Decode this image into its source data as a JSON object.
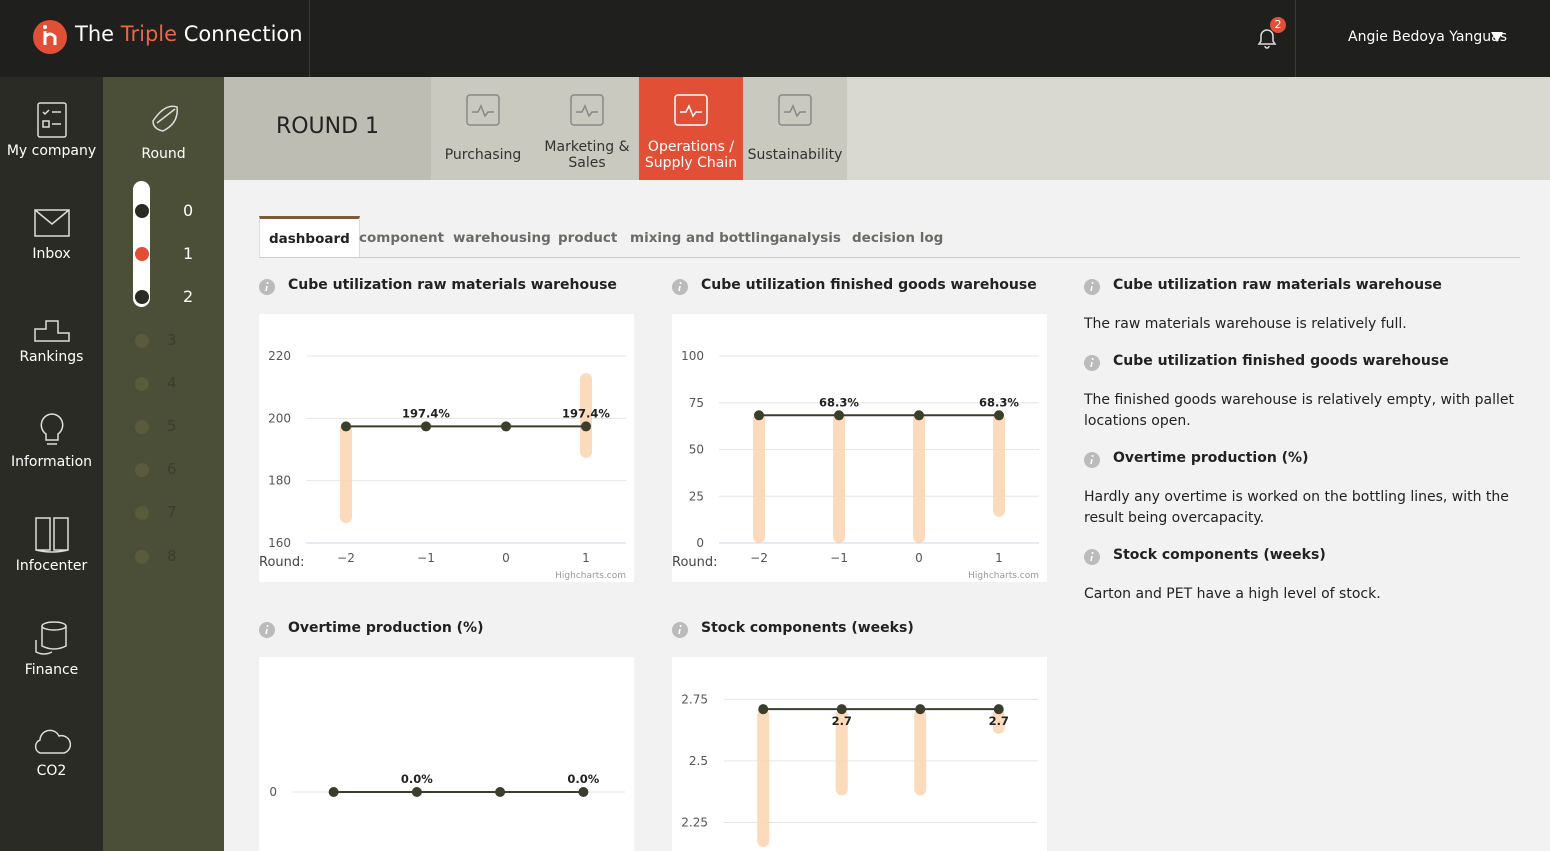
{
  "header": {
    "brand": [
      "The",
      "Triple",
      "Connection"
    ],
    "notifications": 2,
    "user": "Angie Bedoya Yanguas"
  },
  "sidebar": [
    "My company",
    "Inbox",
    "Rankings",
    "Information",
    "Infocenter",
    "Finance",
    "CO2"
  ],
  "round_panel": {
    "label": "Round",
    "rounds": [
      0,
      1,
      2,
      3,
      4,
      5,
      6,
      7,
      8
    ],
    "available": 3,
    "current": 1
  },
  "round_title": "ROUND 1",
  "tabs": {
    "items": [
      "Purchasing",
      "Marketing & Sales",
      "Operations / Supply Chain",
      "Sustainability"
    ],
    "active": 2
  },
  "subtabs": {
    "items": [
      "dashboard",
      "component",
      "warehousing",
      "product",
      "mixing and bottling",
      "analysis",
      "decision log"
    ],
    "active": 0
  },
  "charts": [
    {
      "type": "line",
      "title": "Cube utilization raw materials warehouse",
      "x_label": "Round:",
      "categories": [
        "−2",
        "−1",
        "0",
        "1"
      ],
      "values": [
        197.4,
        197.4,
        197.4,
        197.4
      ],
      "value_labels": [
        null,
        "197.4%",
        null,
        "197.4%"
      ],
      "label_position": "above",
      "color": "#3b3e2d",
      "ranges": [
        [
          166.4,
          198.8
        ],
        [
          196.5,
          198.8
        ],
        [
          196.5,
          198.8
        ],
        [
          187.3,
          214.5
        ]
      ],
      "range_color": "#fbd3b0",
      "ylim": [
        160,
        220
      ],
      "yticks": [
        160,
        180,
        200,
        220
      ],
      "grid": true,
      "credit": "Highcharts.com"
    },
    {
      "type": "line",
      "title": "Cube utilization finished goods warehouse",
      "x_label": "Round:",
      "categories": [
        "−2",
        "−1",
        "0",
        "1"
      ],
      "values": [
        68.3,
        68.3,
        68.3,
        68.3
      ],
      "value_labels": [
        null,
        "68.3%",
        null,
        "68.3%"
      ],
      "label_position": "above",
      "color": "#3b3e2d",
      "ranges": [
        [
          0,
          69.5
        ],
        [
          0,
          69.5
        ],
        [
          0,
          69.5
        ],
        [
          14,
          69.5
        ]
      ],
      "range_color": "#fbd3b0",
      "ylim": [
        0,
        100
      ],
      "yticks": [
        0,
        25,
        50,
        75,
        100
      ],
      "grid": true,
      "credit": "Highcharts.com"
    },
    {
      "type": "line",
      "title": "Overtime production (%)",
      "categories": [
        null,
        null,
        null,
        null
      ],
      "values": [
        0,
        0,
        0,
        0
      ],
      "value_labels": [
        null,
        "0.0%",
        null,
        "0.0%"
      ],
      "label_position": "above",
      "color": "#3b3e2d",
      "ylim": [
        -0.5,
        0.5
      ],
      "yticks": [
        0
      ],
      "grid": true
    },
    {
      "type": "line",
      "title": "Stock components (weeks)",
      "categories": [
        null,
        null,
        null,
        null
      ],
      "values": [
        2.71,
        2.71,
        2.71,
        2.71
      ],
      "value_labels": [
        null,
        "2.7",
        null,
        "2.7"
      ],
      "label_position": "below",
      "color": "#3b3e2d",
      "ranges": [
        [
          2.15,
          2.71
        ],
        [
          2.36,
          2.71
        ],
        [
          2.36,
          2.71
        ],
        [
          2.61,
          2.71
        ]
      ],
      "range_color": "#fbd3b0",
      "ylim": [
        2.0,
        2.8
      ],
      "yticks": [
        2.25,
        2.5,
        2.75
      ],
      "grid": true
    }
  ],
  "notes": [
    {
      "title": "Cube utilization raw materials warehouse",
      "text": "The raw materials warehouse is relatively full."
    },
    {
      "title": "Cube utilization finished goods warehouse",
      "text": "The finished goods warehouse is relatively empty, with pallet locations open."
    },
    {
      "title": "Overtime production (%)",
      "text": "Hardly any overtime is worked on the bottling lines, with the result being overcapacity."
    },
    {
      "title": "Stock components (weeks)",
      "text": "Carton and PET have a high level of stock."
    }
  ]
}
